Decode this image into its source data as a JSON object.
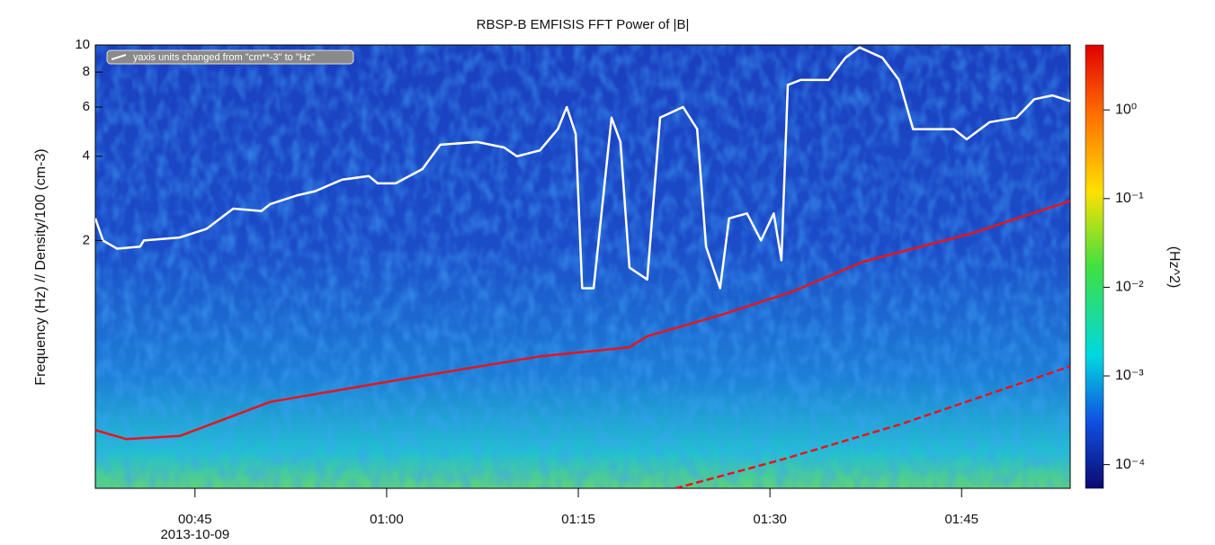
{
  "chart_data": {
    "type": "line",
    "title": "RBSP-B EMFISIS FFT Power of |B|",
    "y_label": "Frequency (Hz)  //  Density/100 (cm-3)",
    "annotation": "yaxis units changed from \"cm**-3\" to \"Hz\"",
    "date_label": "2013-10-09",
    "ylog": true,
    "xlim": [
      37.2,
      113.5
    ],
    "xticks": [
      {
        "value": 45,
        "label": "00:45"
      },
      {
        "value": 60,
        "label": "01:00"
      },
      {
        "value": 75,
        "label": "01:15"
      },
      {
        "value": 90,
        "label": "01:30"
      },
      {
        "value": 105,
        "label": "01:45"
      }
    ],
    "ylim": [
      0.26,
      10
    ],
    "yticks": [
      2,
      4,
      6,
      8,
      10
    ],
    "series": [
      {
        "color": "#ffffff",
        "dash": false,
        "x": [
          37.2,
          37.8,
          38.9,
          40.7,
          41.0,
          43.8,
          45.9,
          47.0,
          48.0,
          50.2,
          50.9,
          53.0,
          54.4,
          56.5,
          58.6,
          59.3,
          60.7,
          62.8,
          64.2,
          67.1,
          69.2,
          70.2,
          72.0,
          73.4,
          74.1,
          74.8,
          75.3,
          76.2,
          77.6,
          78.3,
          79.0,
          80.4,
          81.4,
          83.2,
          84.3,
          85.0,
          86.1,
          86.8,
          88.2,
          89.3,
          90.3,
          90.9,
          91.4,
          92.4,
          94.6,
          95.9,
          97.0,
          98.8,
          100.1,
          101.2,
          104.4,
          105.4,
          107.2,
          109.3,
          110.7,
          112.1,
          113.5
        ],
        "values": [
          2.4,
          2.0,
          1.87,
          1.9,
          2.0,
          2.05,
          2.2,
          2.4,
          2.6,
          2.55,
          2.7,
          2.9,
          3.0,
          3.3,
          3.4,
          3.2,
          3.2,
          3.6,
          4.4,
          4.5,
          4.3,
          4.0,
          4.2,
          5.0,
          6.0,
          4.8,
          1.35,
          1.35,
          5.5,
          4.5,
          1.6,
          1.45,
          5.5,
          6.0,
          5.0,
          1.9,
          1.35,
          2.4,
          2.5,
          2.0,
          2.5,
          1.7,
          7.2,
          7.5,
          7.5,
          9.0,
          9.8,
          9.0,
          7.5,
          5.0,
          5.0,
          4.6,
          5.3,
          5.5,
          6.4,
          6.6,
          6.3
        ]
      },
      {
        "color": "#e8141c",
        "dash": false,
        "x": [
          37.2,
          39.6,
          43.8,
          50.9,
          61.4,
          72.0,
          79.0,
          80.4,
          86.1,
          91.7,
          97.3,
          105.8,
          113.5
        ],
        "values": [
          0.42,
          0.39,
          0.4,
          0.53,
          0.64,
          0.77,
          0.83,
          0.91,
          1.08,
          1.31,
          1.68,
          2.12,
          2.77
        ]
      },
      {
        "color": "#e8141c",
        "dash": true,
        "x": [
          82.6,
          91.0,
          100.2,
          113.5
        ],
        "values": [
          0.26,
          0.33,
          0.44,
          0.71
        ]
      }
    ],
    "colorbar": {
      "label": "(Hz^2)",
      "log": true,
      "lim": [
        5.4e-05,
        5.4
      ],
      "ticks": [
        {
          "value": 1,
          "label": "10⁰"
        },
        {
          "value": 0.1,
          "label": "10⁻¹"
        },
        {
          "value": 0.01,
          "label": "10⁻²"
        },
        {
          "value": 0.001,
          "label": "10⁻³"
        },
        {
          "value": 0.0001,
          "label": "10⁻⁴"
        }
      ]
    }
  }
}
